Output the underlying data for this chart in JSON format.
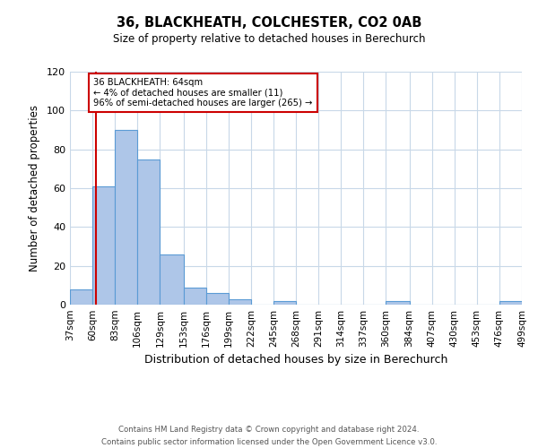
{
  "title": "36, BLACKHEATH, COLCHESTER, CO2 0AB",
  "subtitle": "Size of property relative to detached houses in Berechurch",
  "xlabel": "Distribution of detached houses by size in Berechurch",
  "ylabel": "Number of detached properties",
  "bin_edges": [
    37,
    60,
    83,
    106,
    129,
    153,
    176,
    199,
    222,
    245,
    268,
    291,
    314,
    337,
    360,
    384,
    407,
    430,
    453,
    476,
    499
  ],
  "bar_heights": [
    8,
    61,
    90,
    75,
    26,
    9,
    6,
    3,
    0,
    2,
    0,
    0,
    0,
    0,
    2,
    0,
    0,
    0,
    0,
    2
  ],
  "bar_color": "#aec6e8",
  "bar_edge_color": "#5b9bd5",
  "property_size": 64,
  "vline_color": "#cc0000",
  "annotation_title": "36 BLACKHEATH: 64sqm",
  "annotation_line1": "← 4% of detached houses are smaller (11)",
  "annotation_line2": "96% of semi-detached houses are larger (265) →",
  "annotation_box_color": "#cc0000",
  "ylim": [
    0,
    120
  ],
  "yticks": [
    0,
    20,
    40,
    60,
    80,
    100,
    120
  ],
  "tick_labels": [
    "37sqm",
    "60sqm",
    "83sqm",
    "106sqm",
    "129sqm",
    "153sqm",
    "176sqm",
    "199sqm",
    "222sqm",
    "245sqm",
    "268sqm",
    "291sqm",
    "314sqm",
    "337sqm",
    "360sqm",
    "384sqm",
    "407sqm",
    "430sqm",
    "453sqm",
    "476sqm",
    "499sqm"
  ],
  "footer_line1": "Contains HM Land Registry data © Crown copyright and database right 2024.",
  "footer_line2": "Contains public sector information licensed under the Open Government Licence v3.0.",
  "background_color": "#ffffff",
  "grid_color": "#c8d8e8"
}
